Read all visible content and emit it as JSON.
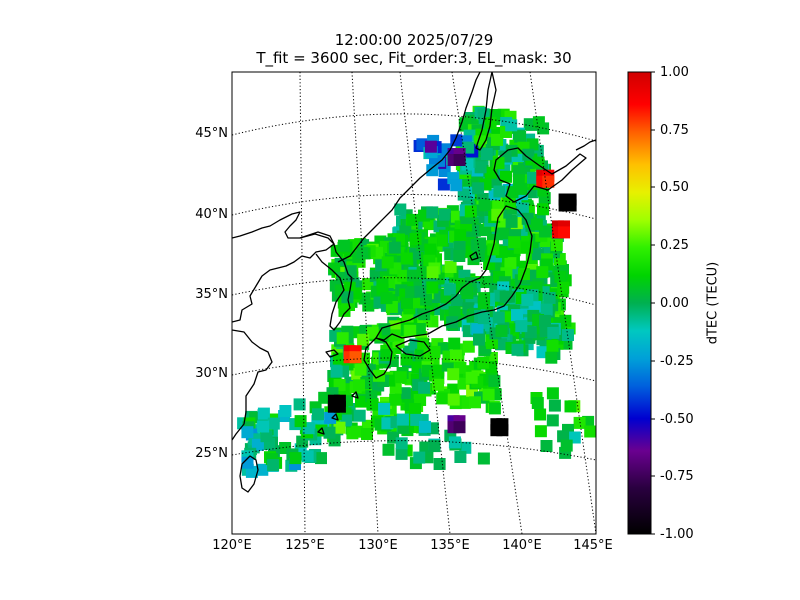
{
  "title_line1": "12:00:00 2025/07/29",
  "title_line2": "T_fit = 3600 sec, Fit_order:3, EL_mask: 30",
  "lat_labels": [
    "45°N",
    "40°N",
    "35°N",
    "30°N",
    "25°N"
  ],
  "lon_labels": [
    "120°E",
    "125°E",
    "130°E",
    "135°E",
    "140°E",
    "145°E"
  ],
  "colorbar": {
    "label": "dTEC (TECU)",
    "ticks": [
      "1.00",
      "0.75",
      "0.50",
      "0.25",
      "0.00",
      "-0.25",
      "-0.50",
      "-0.75",
      "-1.00"
    ],
    "range": [
      -1.0,
      1.0
    ],
    "colormap": "nipy_spectral"
  },
  "map": {
    "region": "Japan and surrounding area",
    "lon_range": [
      120,
      145
    ],
    "lat_range": [
      20,
      49
    ],
    "graticule": "dotted",
    "coastline_color": "#000000",
    "background_color": "#ffffff"
  },
  "chart_data": {
    "type": "heatmap",
    "title": "12:00:00 2025/07/29",
    "subtitle": "T_fit = 3600 sec, Fit_order:3, EL_mask: 30",
    "xlabel": "",
    "ylabel": "",
    "colorbar_label": "dTEC (TECU)",
    "value_range": [
      -1.0,
      1.0
    ],
    "notable_cells": [
      {
        "lon": 127.2,
        "lat": 26.5,
        "value": -1.0
      },
      {
        "lon": 137.8,
        "lat": 25.0,
        "value": -1.0
      },
      {
        "lon": 143.3,
        "lat": 40.3,
        "value": -1.0
      },
      {
        "lon": 142.7,
        "lat": 38.5,
        "value": 1.0
      },
      {
        "lon": 141.8,
        "lat": 41.5,
        "value": 0.95
      },
      {
        "lon": 128.2,
        "lat": 29.5,
        "value": 0.9
      },
      {
        "lon": 135.5,
        "lat": 42.0,
        "value": -0.6
      },
      {
        "lon": 135.0,
        "lat": 24.8,
        "value": -0.6
      }
    ]
  }
}
